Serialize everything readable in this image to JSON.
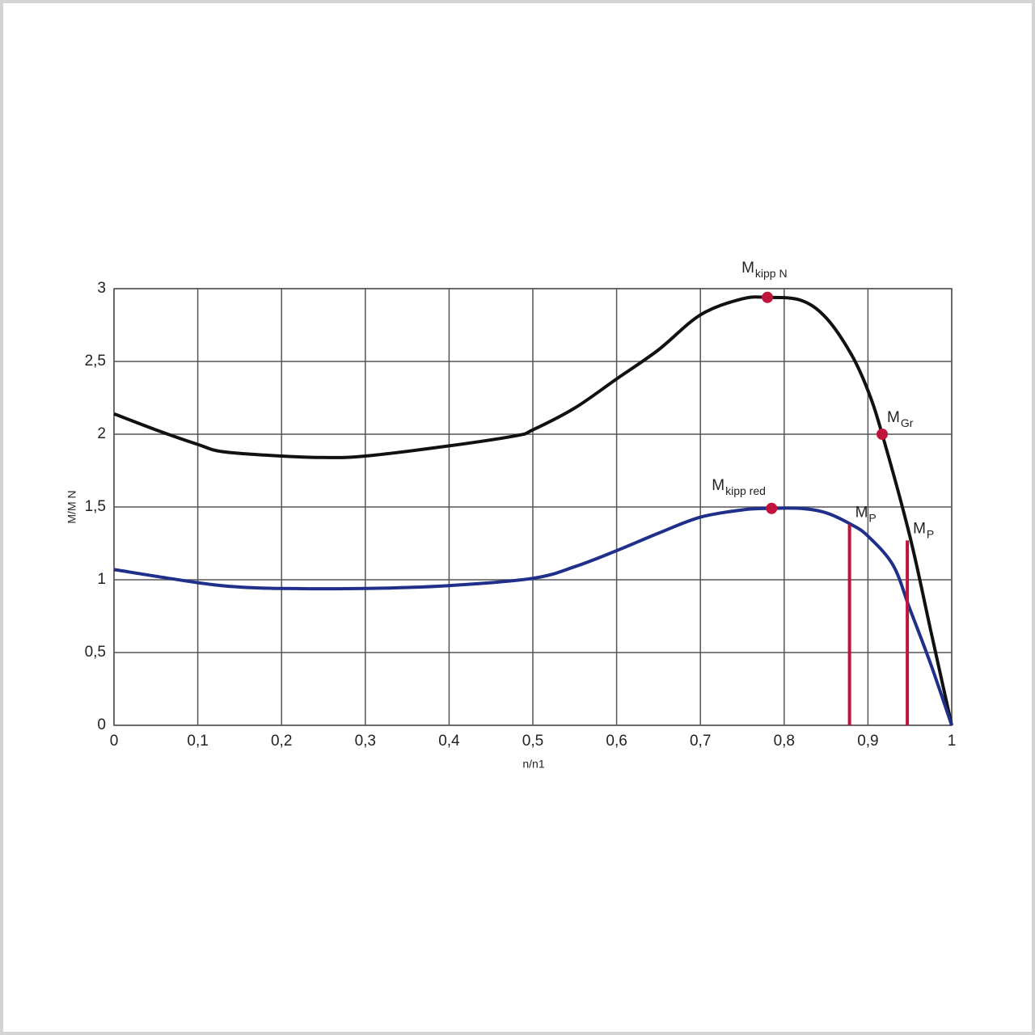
{
  "chart_data": {
    "type": "line",
    "x_label": "n/n1",
    "y_label": "M/M N",
    "xlim": [
      0,
      1
    ],
    "ylim": [
      0,
      3
    ],
    "xticks": [
      0,
      {
        "value": 0.1,
        "label": "0,1"
      },
      {
        "value": 0.2,
        "label": "0,2"
      },
      {
        "value": 0.3,
        "label": "0,3"
      },
      {
        "value": 0.4,
        "label": "0,4"
      },
      {
        "value": 0.5,
        "label": "0,5"
      },
      {
        "value": 0.6,
        "label": "0,6"
      },
      {
        "value": 0.7,
        "label": "0,7"
      },
      {
        "value": 0.8,
        "label": "0,8"
      },
      {
        "value": 0.9,
        "label": "0,9"
      },
      1
    ],
    "yticks": [
      0,
      {
        "value": 0.5,
        "label": "0,5"
      },
      1,
      {
        "value": 1.5,
        "label": "1,5"
      },
      2,
      {
        "value": 2.5,
        "label": "2,5"
      },
      3
    ],
    "grid": true,
    "series": [
      {
        "color": "#111111",
        "x": [
          0,
          0.05,
          0.1,
          0.13,
          0.2,
          0.25,
          0.3,
          0.4,
          0.48,
          0.5,
          0.55,
          0.6,
          0.65,
          0.7,
          0.75,
          0.78,
          0.82,
          0.85,
          0.88,
          0.9,
          0.917,
          0.95,
          0.975,
          1
        ],
        "values": [
          2.14,
          2.03,
          1.93,
          1.88,
          1.85,
          1.84,
          1.85,
          1.92,
          1.99,
          2.03,
          2.18,
          2.38,
          2.58,
          2.82,
          2.93,
          2.94,
          2.92,
          2.8,
          2.55,
          2.3,
          2.0,
          1.3,
          0.65,
          0
        ]
      },
      {
        "color": "#1f2f8a",
        "x": [
          0,
          0.1,
          0.15,
          0.2,
          0.3,
          0.4,
          0.5,
          0.55,
          0.6,
          0.65,
          0.7,
          0.75,
          0.78,
          0.82,
          0.85,
          0.88,
          0.9,
          0.93,
          0.95,
          0.975,
          1
        ],
        "values": [
          1.07,
          0.98,
          0.95,
          0.94,
          0.94,
          0.96,
          1.01,
          1.09,
          1.2,
          1.32,
          1.43,
          1.48,
          1.49,
          1.49,
          1.46,
          1.38,
          1.3,
          1.1,
          0.8,
          0.42,
          0
        ]
      }
    ],
    "marker_color": "#c0143c",
    "markers": [
      {
        "x": 0.78,
        "y": 2.94,
        "label": "M",
        "sub": "kipp N"
      },
      {
        "x": 0.917,
        "y": 2.0,
        "label": "M",
        "sub": "Gr"
      },
      {
        "x": 0.785,
        "y": 1.49,
        "label": "M",
        "sub": "kipp red"
      }
    ],
    "vlines": [
      {
        "x": 0.878,
        "y": 1.38,
        "label": "M",
        "sub": "P"
      },
      {
        "x": 0.947,
        "y": 1.27,
        "label": "M",
        "sub": "P"
      }
    ]
  }
}
